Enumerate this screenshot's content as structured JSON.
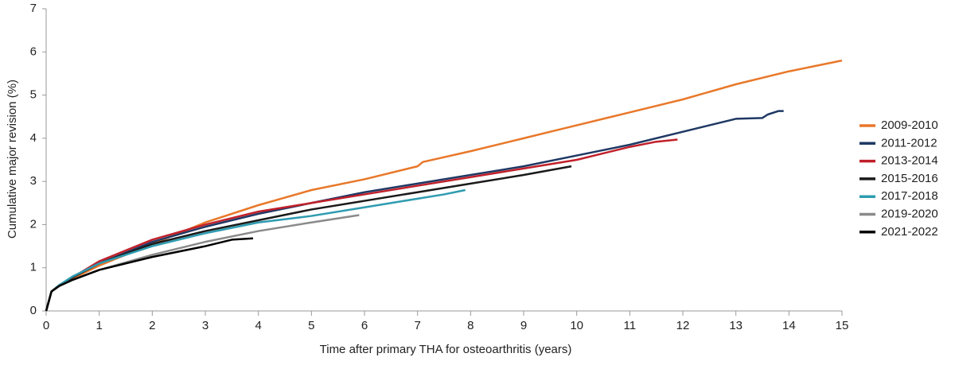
{
  "chart_data": {
    "type": "line",
    "xlabel": "Time after primary THA for osteoarthritis (years)",
    "ylabel": "Cumulative major revision (%)",
    "xlim": [
      0,
      15
    ],
    "xticks": [
      0,
      1,
      2,
      3,
      4,
      5,
      6,
      7,
      8,
      9,
      10,
      11,
      12,
      13,
      14,
      15
    ],
    "ylim": [
      0,
      7
    ],
    "yticks": [
      0,
      1,
      2,
      3,
      4,
      5,
      6,
      7
    ],
    "grid": false,
    "legend": "right",
    "series": [
      {
        "name": "2009-2010",
        "color": "#e8782a",
        "x": [
          0,
          0.1,
          0.25,
          0.5,
          1,
          2,
          3,
          4,
          5,
          6,
          7,
          7.1,
          8,
          9,
          9.5,
          10,
          11,
          12,
          13,
          14,
          15
        ],
        "values": [
          0,
          0.45,
          0.6,
          0.75,
          1.05,
          1.55,
          2.05,
          2.45,
          2.8,
          3.05,
          3.35,
          3.45,
          3.7,
          4.0,
          4.15,
          4.3,
          4.6,
          4.9,
          5.25,
          5.55,
          5.8
        ]
      },
      {
        "name": "2011-2012",
        "color": "#1f3864",
        "x": [
          0,
          0.1,
          0.25,
          0.5,
          1,
          2,
          3,
          4,
          5,
          6,
          7,
          8,
          9,
          10,
          11,
          12,
          13,
          13.5,
          13.6,
          13.8,
          13.9
        ],
        "values": [
          0,
          0.45,
          0.6,
          0.78,
          1.1,
          1.6,
          1.95,
          2.25,
          2.5,
          2.75,
          2.95,
          3.15,
          3.35,
          3.6,
          3.85,
          4.15,
          4.45,
          4.47,
          4.55,
          4.63,
          4.63
        ]
      },
      {
        "name": "2013-2014",
        "color": "#c0202a",
        "x": [
          0,
          0.1,
          0.25,
          0.5,
          1,
          2,
          3,
          4,
          5,
          6,
          7,
          8,
          9,
          10,
          11,
          11.5,
          11.9
        ],
        "values": [
          0,
          0.45,
          0.6,
          0.78,
          1.15,
          1.65,
          2.0,
          2.3,
          2.5,
          2.7,
          2.9,
          3.1,
          3.3,
          3.5,
          3.8,
          3.92,
          3.97
        ]
      },
      {
        "name": "2015-2016",
        "color": "#1a1a1a",
        "x": [
          0,
          0.1,
          0.25,
          0.5,
          1,
          2,
          3,
          4,
          5,
          6,
          7,
          8,
          9,
          9.9
        ],
        "values": [
          0,
          0.45,
          0.6,
          0.78,
          1.1,
          1.55,
          1.85,
          2.1,
          2.35,
          2.55,
          2.75,
          2.95,
          3.15,
          3.35
        ]
      },
      {
        "name": "2017-2018",
        "color": "#2e9bb0",
        "x": [
          0,
          0.1,
          0.25,
          0.5,
          1,
          2,
          3,
          4,
          5,
          6,
          7,
          7.5,
          7.9
        ],
        "values": [
          0,
          0.45,
          0.6,
          0.8,
          1.1,
          1.5,
          1.8,
          2.05,
          2.2,
          2.4,
          2.6,
          2.7,
          2.8
        ]
      },
      {
        "name": "2019-2020",
        "color": "#8a8a8a",
        "x": [
          0,
          0.1,
          0.25,
          0.5,
          1,
          2,
          3,
          4,
          5,
          5.9
        ],
        "values": [
          0,
          0.45,
          0.58,
          0.72,
          0.95,
          1.3,
          1.6,
          1.85,
          2.05,
          2.22
        ]
      },
      {
        "name": "2021-2022",
        "color": "#000000",
        "x": [
          0,
          0.1,
          0.25,
          0.5,
          1,
          2,
          3,
          3.5,
          3.9
        ],
        "values": [
          0,
          0.45,
          0.58,
          0.72,
          0.95,
          1.25,
          1.5,
          1.65,
          1.68
        ]
      }
    ]
  }
}
